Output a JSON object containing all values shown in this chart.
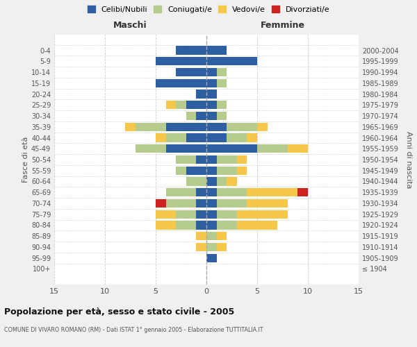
{
  "age_groups": [
    "100+",
    "95-99",
    "90-94",
    "85-89",
    "80-84",
    "75-79",
    "70-74",
    "65-69",
    "60-64",
    "55-59",
    "50-54",
    "45-49",
    "40-44",
    "35-39",
    "30-34",
    "25-29",
    "20-24",
    "15-19",
    "10-14",
    "5-9",
    "0-4"
  ],
  "birth_years": [
    "≤ 1904",
    "1905-1909",
    "1910-1914",
    "1915-1919",
    "1920-1924",
    "1925-1929",
    "1930-1934",
    "1935-1939",
    "1940-1944",
    "1945-1949",
    "1950-1954",
    "1955-1959",
    "1960-1964",
    "1965-1969",
    "1970-1974",
    "1975-1979",
    "1980-1984",
    "1985-1989",
    "1990-1994",
    "1995-1999",
    "2000-2004"
  ],
  "maschi": {
    "celibi": [
      0,
      0,
      0,
      0,
      1,
      1,
      1,
      1,
      0,
      2,
      1,
      4,
      2,
      4,
      1,
      2,
      1,
      5,
      3,
      5,
      3
    ],
    "coniugati": [
      0,
      0,
      0,
      0,
      2,
      2,
      3,
      3,
      2,
      1,
      2,
      3,
      2,
      3,
      1,
      1,
      0,
      0,
      0,
      0,
      0
    ],
    "vedovi": [
      0,
      0,
      1,
      1,
      2,
      2,
      0,
      0,
      0,
      0,
      0,
      0,
      1,
      1,
      0,
      1,
      0,
      0,
      0,
      0,
      0
    ],
    "divorziati": [
      0,
      0,
      0,
      0,
      0,
      0,
      1,
      0,
      0,
      0,
      0,
      0,
      0,
      0,
      0,
      0,
      0,
      0,
      0,
      0,
      0
    ]
  },
  "femmine": {
    "nubili": [
      0,
      1,
      0,
      0,
      1,
      1,
      1,
      1,
      1,
      1,
      1,
      5,
      2,
      2,
      1,
      1,
      1,
      1,
      1,
      5,
      2
    ],
    "coniugate": [
      0,
      0,
      1,
      1,
      2,
      2,
      3,
      3,
      1,
      2,
      2,
      3,
      2,
      3,
      1,
      1,
      0,
      1,
      1,
      0,
      0
    ],
    "vedove": [
      0,
      0,
      1,
      1,
      4,
      5,
      4,
      5,
      1,
      1,
      1,
      2,
      1,
      1,
      0,
      0,
      0,
      0,
      0,
      0,
      0
    ],
    "divorziate": [
      0,
      0,
      0,
      0,
      0,
      0,
      0,
      1,
      0,
      0,
      0,
      0,
      0,
      0,
      0,
      0,
      0,
      0,
      0,
      0,
      0
    ]
  },
  "colors": {
    "celibi": "#2e5fa3",
    "coniugati": "#b5cc8e",
    "vedovi": "#f5c84c",
    "divorziati": "#cc2222"
  },
  "title": "Popolazione per età, sesso e stato civile - 2005",
  "subtitle": "COMUNE DI VIVARO ROMANO (RM) - Dati ISTAT 1° gennaio 2005 - Elaborazione TUTTITALIA.IT",
  "xlabel_left": "Maschi",
  "xlabel_right": "Femmine",
  "ylabel": "Fasce di età",
  "ylabel_right": "Anni di nascita",
  "xlim": 15,
  "legend_labels": [
    "Celibi/Nubili",
    "Coniugati/e",
    "Vedovi/e",
    "Divorziati/e"
  ],
  "bg_color": "#f0f0f0",
  "plot_bg": "#ffffff",
  "grid_color": "#cccccc"
}
